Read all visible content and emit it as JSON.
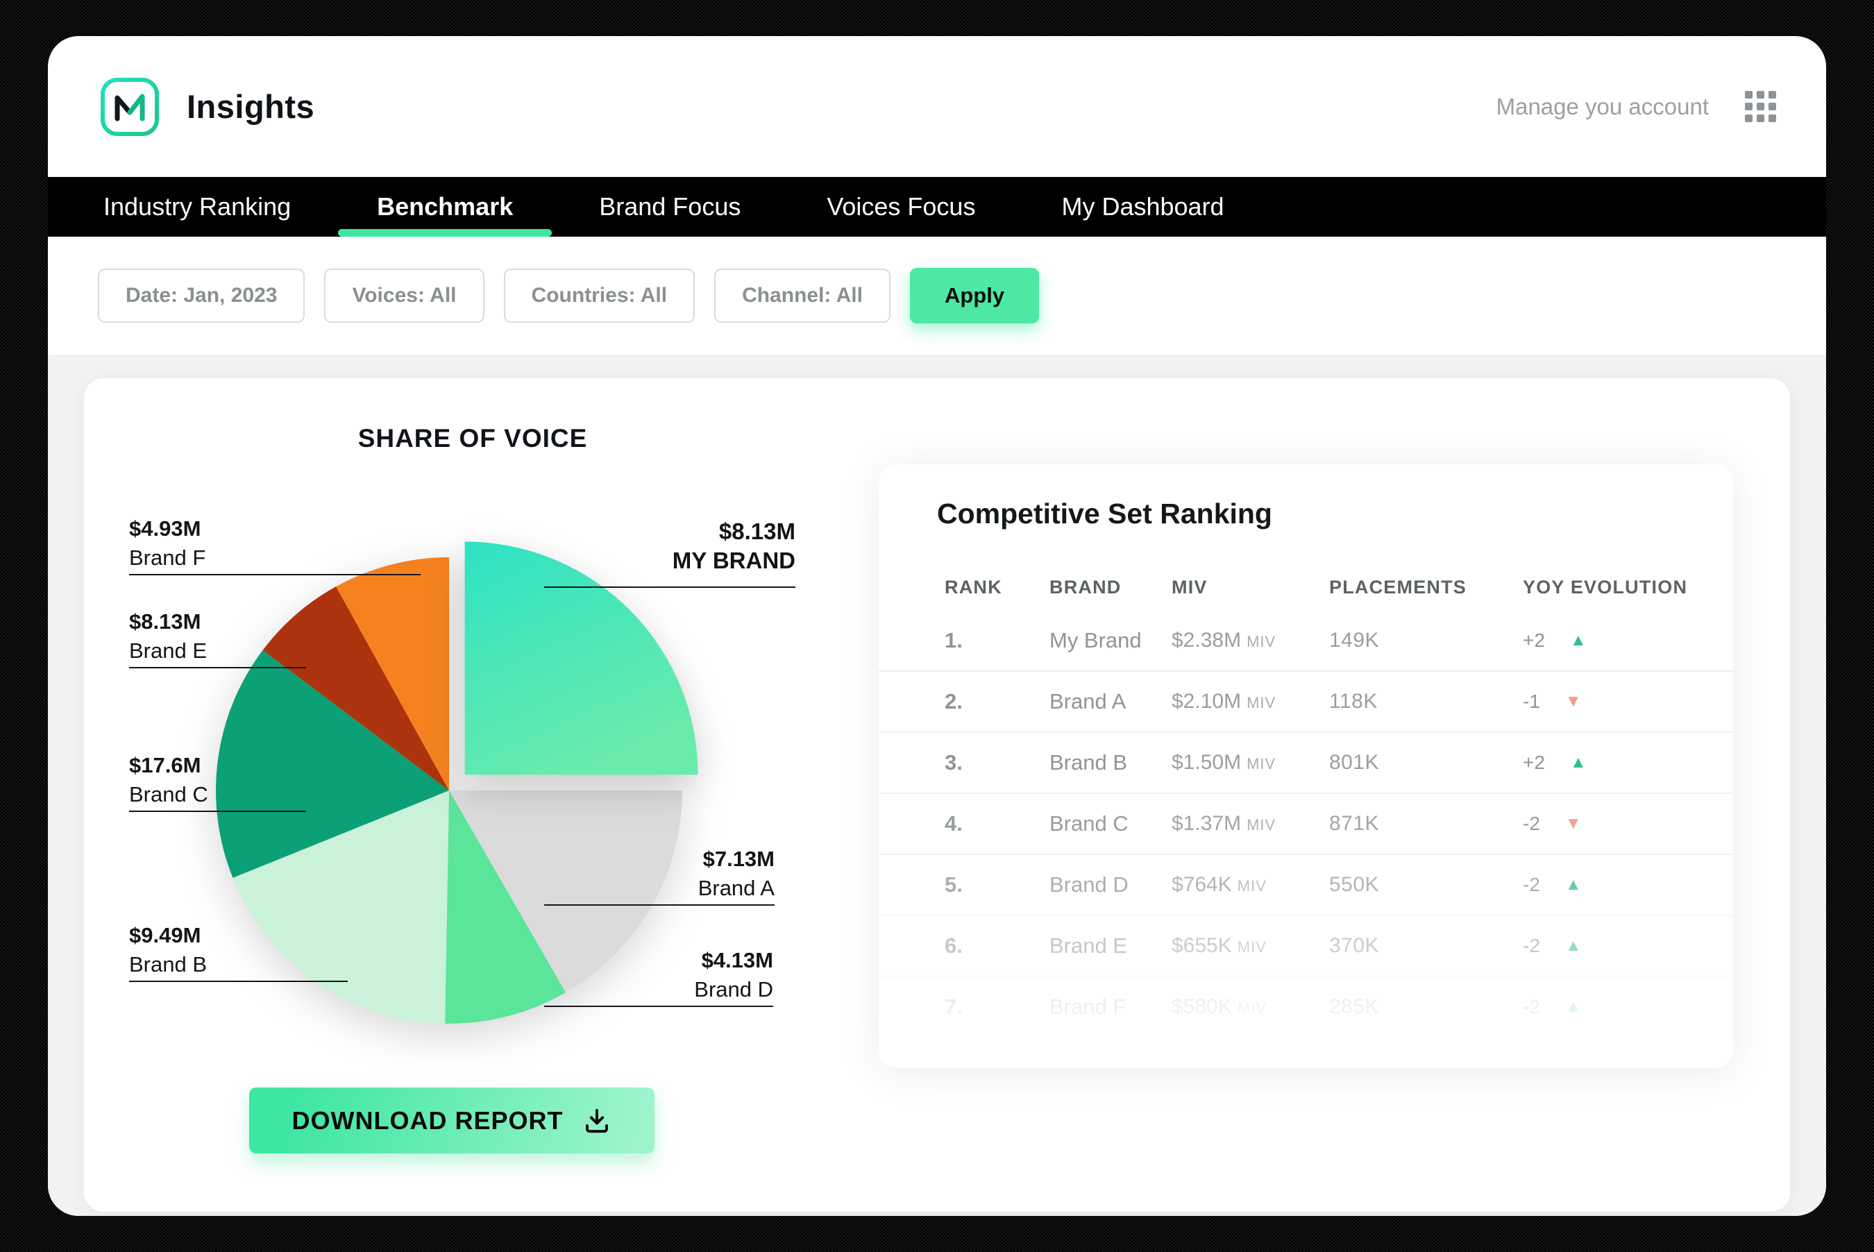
{
  "colors": {
    "accent": "#3DE79F",
    "apply_bg": "#4BE9A4",
    "nav_bg": "#000000",
    "trend_up": "#35BD8C",
    "trend_down": "#F29C86"
  },
  "window": {
    "title": "Insights",
    "account_label": "Manage you account"
  },
  "nav": {
    "active": "Benchmark",
    "items": [
      "Industry Ranking",
      "Benchmark",
      "Brand Focus",
      "Voices Focus",
      "My Dashboard"
    ]
  },
  "filters": {
    "buttons": [
      "Date: Jan, 2023",
      "Voices: All",
      "Countries: All",
      "Channel: All"
    ],
    "apply_label": "Apply"
  },
  "chart_data": {
    "type": "pie",
    "title": "SHARE OF VOICE",
    "legend_position": "callout-labels",
    "gradient": [
      "#2EE2C4",
      "#69EBAC"
    ],
    "slices": [
      {
        "label": "MY BRAND",
        "value_label": "$8.13M",
        "value": 8.13,
        "color": "gradient",
        "start": 0,
        "end": 90,
        "exploded": true
      },
      {
        "label": "Brand A",
        "value_label": "$7.13M",
        "value": 7.13,
        "color": "#DBDBDB",
        "start": 90,
        "end": 150,
        "exploded": false
      },
      {
        "label": "Brand D",
        "value_label": "$4.13M",
        "value": 4.13,
        "color": "#5BE59A",
        "start": 150,
        "end": 181,
        "exploded": false
      },
      {
        "label": "Brand B",
        "value_label": "$9.49M",
        "value": 9.49,
        "color": "#C9F2D9",
        "start": 181,
        "end": 248,
        "exploded": false
      },
      {
        "label": "Brand C",
        "value_label": "$17.6M",
        "value": 17.6,
        "color": "#0CA077",
        "start": 248,
        "end": 307,
        "exploded": false
      },
      {
        "label": "Brand E",
        "value_label": "$8.13M",
        "value": 8.13,
        "color": "#AC330E",
        "start": 307,
        "end": 331,
        "exploded": false
      },
      {
        "label": "Brand F",
        "value_label": "$4.93M",
        "value": 4.93,
        "color": "#F5821F",
        "start": 331,
        "end": 360,
        "exploded": false
      }
    ]
  },
  "download": {
    "label": "DOWNLOAD REPORT"
  },
  "ranking": {
    "title": "Competitive Set Ranking",
    "columns": [
      "RANK",
      "BRAND",
      "MIV",
      "PLACEMENTS",
      "YOY EVOLUTION"
    ],
    "rows": [
      {
        "rank": "1.",
        "brand": "My Brand",
        "miv": "$2.38M",
        "miv_unit": "MIV",
        "placements": "149K",
        "yoy": "+2",
        "trend": "up"
      },
      {
        "rank": "2.",
        "brand": "Brand A",
        "miv": "$2.10M",
        "miv_unit": "MIV",
        "placements": "118K",
        "yoy": "-1",
        "trend": "down"
      },
      {
        "rank": "3.",
        "brand": "Brand B",
        "miv": "$1.50M",
        "miv_unit": "MIV",
        "placements": "801K",
        "yoy": "+2",
        "trend": "up"
      },
      {
        "rank": "4.",
        "brand": "Brand C",
        "miv": "$1.37M",
        "miv_unit": "MIV",
        "placements": "871K",
        "yoy": "-2",
        "trend": "down"
      },
      {
        "rank": "5.",
        "brand": "Brand D",
        "miv": "$764K",
        "miv_unit": "MIV",
        "placements": "550K",
        "yoy": "-2",
        "trend": "up"
      },
      {
        "rank": "6.",
        "brand": "Brand E",
        "miv": "$655K",
        "miv_unit": "MIV",
        "placements": "370K",
        "yoy": "-2",
        "trend": "up"
      },
      {
        "rank": "7.",
        "brand": "Brand F",
        "miv": "$580K",
        "miv_unit": "MIV",
        "placements": "285K",
        "yoy": "-2",
        "trend": "up"
      }
    ]
  }
}
